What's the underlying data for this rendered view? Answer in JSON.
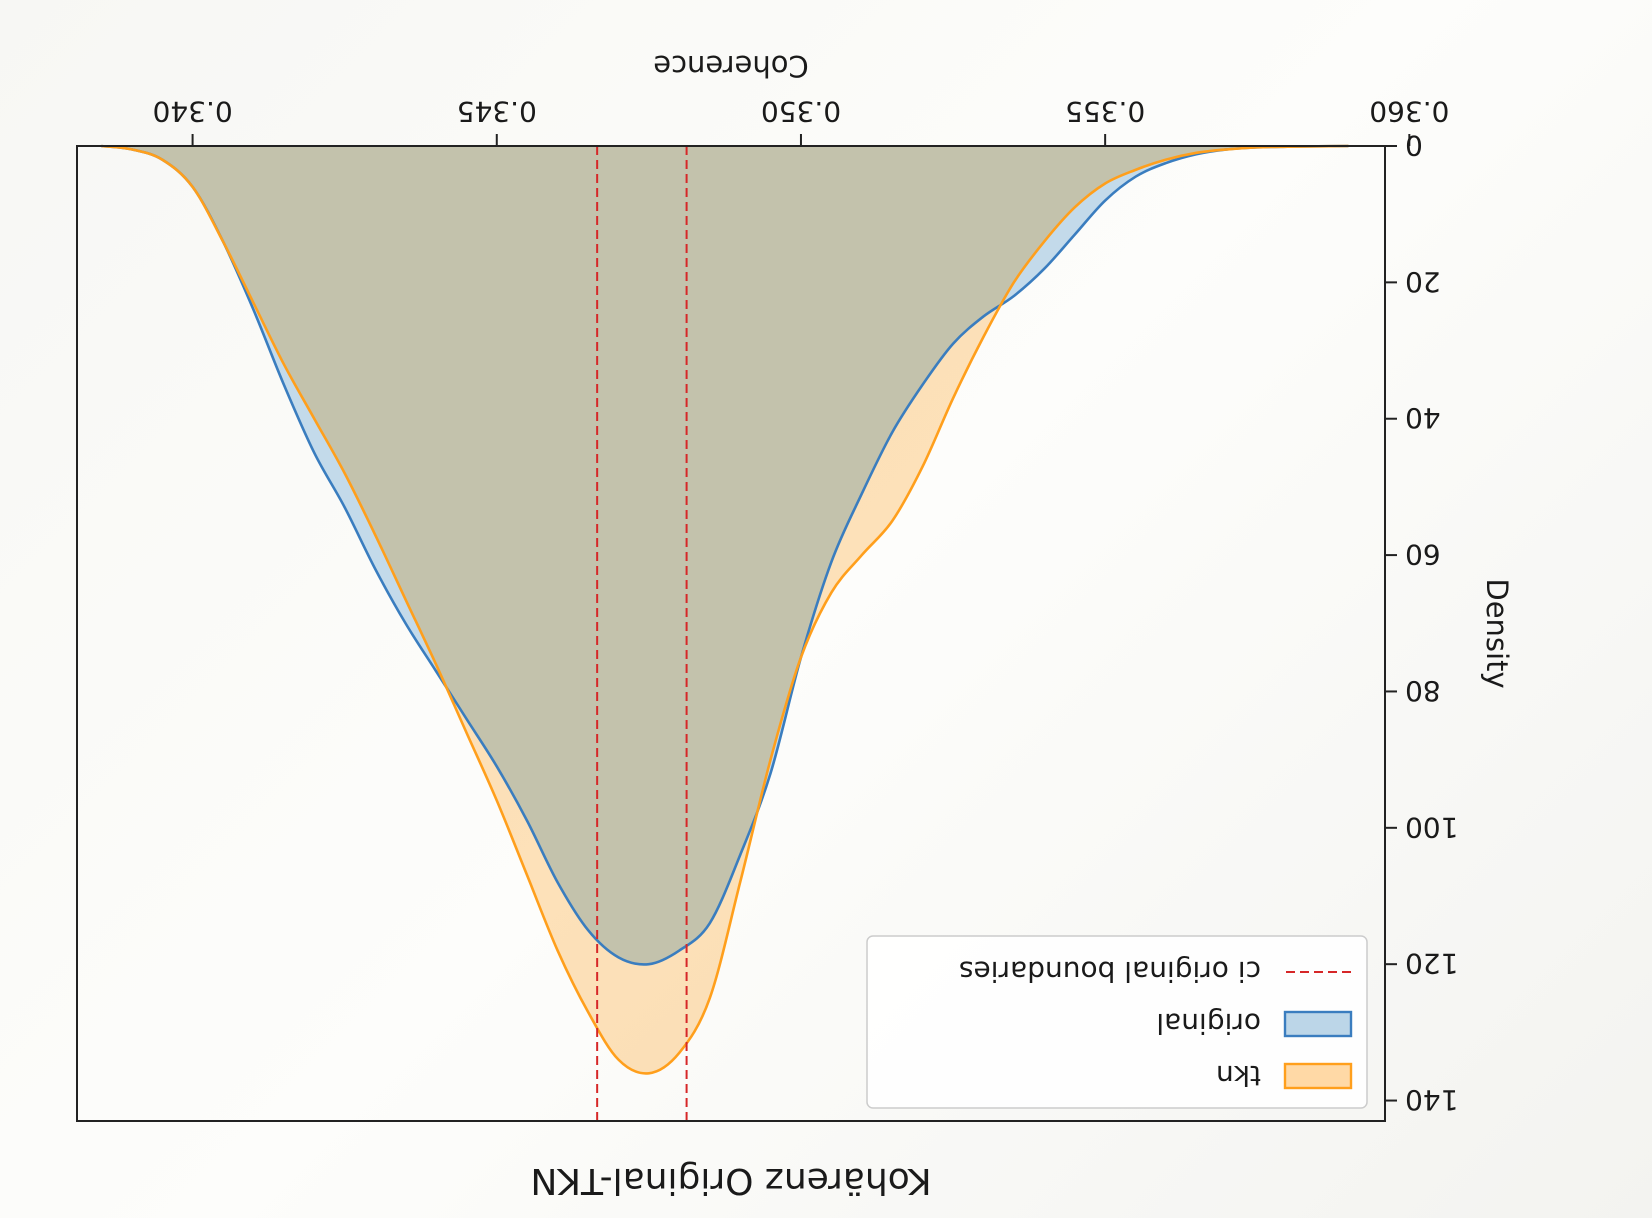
{
  "chart_data": {
    "type": "area",
    "title": "Kohärenz Original-TKN",
    "xlabel": "Coherence",
    "ylabel": "Density",
    "xlim": [
      0.3596,
      0.3381
    ],
    "ylim": [
      0,
      143
    ],
    "x_ticks": [
      0.34,
      0.345,
      0.35,
      0.355,
      0.36
    ],
    "x_tick_labels": [
      "0.340",
      "0.345",
      "0.350",
      "0.355",
      "0.360"
    ],
    "y_ticks": [
      0,
      20,
      40,
      60,
      80,
      100,
      120,
      140
    ],
    "y_tick_labels": [
      "0",
      "20",
      "40",
      "60",
      "80",
      "100",
      "120",
      "140"
    ],
    "grid": false,
    "legend_position": "bottom-right",
    "series": [
      {
        "name": "tkn",
        "color": "#ff9f1c",
        "fill": "#ffd9a6",
        "x": [
          0.3385,
          0.339,
          0.3395,
          0.34,
          0.3405,
          0.341,
          0.3415,
          0.342,
          0.3425,
          0.343,
          0.3435,
          0.344,
          0.3445,
          0.345,
          0.3455,
          0.346,
          0.3465,
          0.347,
          0.3475,
          0.348,
          0.3485,
          0.349,
          0.3495,
          0.35,
          0.3505,
          0.351,
          0.3515,
          0.352,
          0.3525,
          0.353,
          0.3535,
          0.354,
          0.3545,
          0.355,
          0.3555,
          0.356,
          0.3565,
          0.357,
          0.3575,
          0.358,
          0.3585,
          0.359
        ],
        "y": [
          0,
          0.5,
          2.0,
          6.0,
          14.0,
          23.0,
          32.0,
          40.0,
          48.0,
          57.0,
          66.5,
          76.0,
          86.0,
          96.0,
          107.0,
          118.0,
          127.0,
          134.0,
          136.0,
          133.0,
          125.0,
          108.0,
          90.0,
          75.0,
          65.5,
          60.0,
          55.0,
          47.0,
          37.0,
          28.0,
          20.0,
          14.0,
          9.0,
          5.5,
          3.5,
          2.0,
          1.0,
          0.5,
          0.2,
          0.1,
          0.05,
          0
        ]
      },
      {
        "name": "original",
        "color": "#3a7dbf",
        "fill": "#bcd6e8",
        "x": [
          0.3385,
          0.339,
          0.3395,
          0.34,
          0.3405,
          0.341,
          0.3415,
          0.342,
          0.3425,
          0.343,
          0.3435,
          0.344,
          0.3445,
          0.345,
          0.3455,
          0.346,
          0.3465,
          0.347,
          0.3475,
          0.348,
          0.3485,
          0.349,
          0.3495,
          0.35,
          0.3505,
          0.351,
          0.3515,
          0.352,
          0.3525,
          0.353,
          0.3535,
          0.354,
          0.3545,
          0.355,
          0.3555,
          0.356,
          0.3565,
          0.357,
          0.3575,
          0.358,
          0.3585,
          0.359
        ],
        "y": [
          0,
          0.5,
          2.0,
          6.0,
          14.0,
          24.0,
          35.0,
          45.0,
          53.0,
          62.0,
          70.0,
          77.0,
          84.0,
          91.0,
          99.0,
          108.0,
          115.0,
          119.0,
          120.0,
          118.0,
          114.0,
          104.0,
          92.0,
          75.0,
          61.0,
          51.0,
          42.0,
          35.0,
          29.0,
          25.0,
          22.0,
          18.0,
          13.0,
          8.0,
          4.5,
          2.5,
          1.2,
          0.5,
          0.2,
          0.1,
          0.05,
          0
        ]
      },
      {
        "name": "ci original boundaries",
        "color": "#d62728",
        "style": "dashed",
        "x": [
          0.34665,
          0.34812
        ]
      }
    ]
  }
}
